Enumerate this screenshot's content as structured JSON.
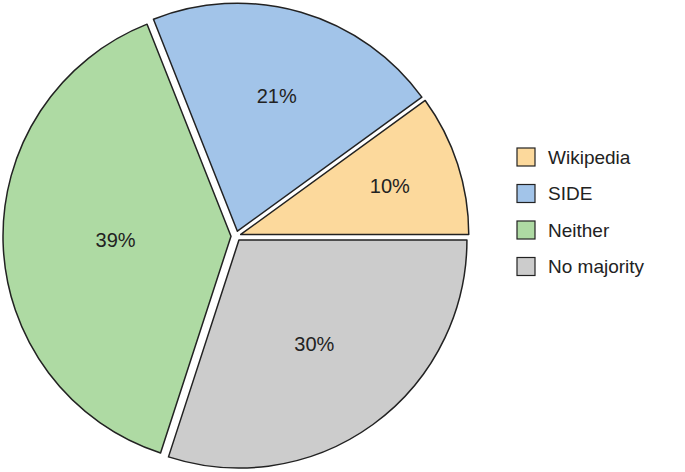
{
  "chart_data": {
    "type": "pie",
    "categories": [
      "Wikipedia",
      "SIDE",
      "Neither",
      "No majority"
    ],
    "values": [
      10,
      21,
      39,
      30
    ],
    "value_labels": [
      "10%",
      "21%",
      "39%",
      "30%"
    ],
    "colors": [
      "#fcd99c",
      "#a2c4e9",
      "#aedaa3",
      "#cccccc"
    ],
    "data_labels": true,
    "legend": "right"
  }
}
